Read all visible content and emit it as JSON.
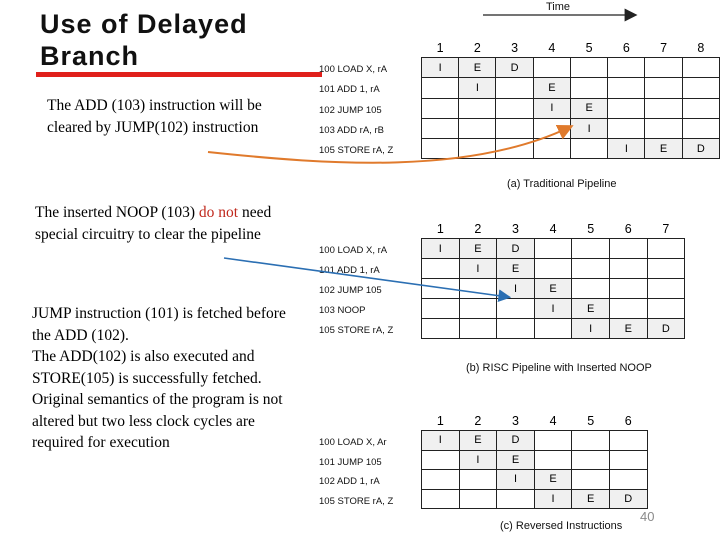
{
  "title": {
    "line1": "Use of Delayed",
    "line2": "Branch"
  },
  "notes": {
    "n1": "The ADD (103) instruction will be cleared by JUMP(102) instruction",
    "n2_a": "The inserted NOOP (103) ",
    "n2_b": "do not",
    "n2_c": " need special circuitry to clear the pipeline",
    "n3_l1": "JUMP instruction (101) is fetched before the ADD (102).",
    "n3_l2": "The ADD(102) is also executed and STORE(105) is successfully fetched.",
    "n3_l3": "Original semantics of the program is not altered but two less clock cycles are required for execution"
  },
  "time_label": "Time",
  "page_number": "40",
  "pipeline_a": {
    "caption": "(a) Traditional Pipeline",
    "headers": [
      "1",
      "2",
      "3",
      "4",
      "5",
      "6",
      "7",
      "8"
    ],
    "instructions": [
      "100 LOAD X, rA",
      "101 ADD 1, rA",
      "102 JUMP 105",
      "103 ADD rA, rB",
      "105 STORE rA, Z"
    ],
    "rows": [
      [
        "I",
        "E",
        "D",
        "",
        "",
        "",
        "",
        ""
      ],
      [
        "",
        "I",
        "",
        "E",
        "",
        "",
        "",
        ""
      ],
      [
        "",
        "",
        "",
        "I",
        "E",
        "",
        "",
        ""
      ],
      [
        "",
        "",
        "",
        "",
        "I",
        "",
        "",
        ""
      ],
      [
        "",
        "",
        "",
        "",
        "",
        "I",
        "E",
        "D"
      ]
    ]
  },
  "pipeline_b": {
    "caption": "(b) RISC Pipeline with Inserted NOOP",
    "headers": [
      "1",
      "2",
      "3",
      "4",
      "5",
      "6",
      "7"
    ],
    "instructions": [
      "100 LOAD X, rA",
      "101 ADD 1, rA",
      "102 JUMP 105",
      "103 NOOP",
      "105 STORE rA, Z"
    ],
    "rows": [
      [
        "I",
        "E",
        "D",
        "",
        "",
        "",
        ""
      ],
      [
        "",
        "I",
        "E",
        "",
        "",
        "",
        ""
      ],
      [
        "",
        "",
        "I",
        "E",
        "",
        "",
        ""
      ],
      [
        "",
        "",
        "",
        "I",
        "E",
        "",
        ""
      ],
      [
        "",
        "",
        "",
        "",
        "I",
        "E",
        "D"
      ]
    ]
  },
  "pipeline_c": {
    "caption": "(c) Reversed Instructions",
    "headers": [
      "1",
      "2",
      "3",
      "4",
      "5",
      "6"
    ],
    "instructions": [
      "100 LOAD X, Ar",
      "101 JUMP 105",
      "102 ADD 1, rA",
      "105 STORE rA, Z"
    ],
    "rows": [
      [
        "I",
        "E",
        "D",
        "",
        "",
        ""
      ],
      [
        "",
        "I",
        "E",
        "",
        "",
        ""
      ],
      [
        "",
        "",
        "I",
        "E",
        "",
        ""
      ],
      [
        "",
        "",
        "",
        "I",
        "E",
        "D"
      ]
    ]
  },
  "colors": {
    "accent_red": "#e0201b",
    "arrow_orange": "#e07a2c",
    "arrow_blue": "#2b6fb3"
  }
}
